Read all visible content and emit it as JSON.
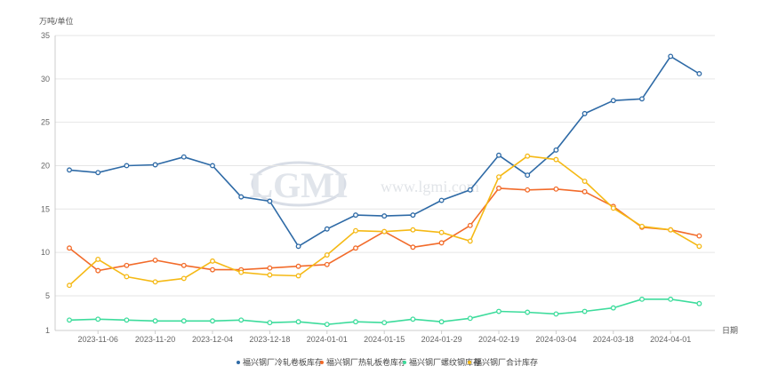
{
  "watermark": {
    "logo_text": "LGMI",
    "url_text": "www.lgmi.com"
  },
  "chart_data": {
    "type": "line",
    "title": "",
    "ylabel": "万吨/单位",
    "xlabel": "日期",
    "ylim": [
      1,
      35
    ],
    "yticks": [
      1,
      5,
      10,
      15,
      20,
      25,
      30,
      35
    ],
    "x": [
      "2023-10-30",
      "2023-11-06",
      "2023-11-13",
      "2023-11-20",
      "2023-11-27",
      "2023-12-04",
      "2023-12-11",
      "2023-12-18",
      "2023-12-25",
      "2024-01-01",
      "2024-01-08",
      "2024-01-15",
      "2024-01-22",
      "2024-01-29",
      "2024-02-05",
      "2024-02-19",
      "2024-02-26",
      "2024-03-04",
      "2024-03-11",
      "2024-03-18",
      "2024-03-25",
      "2024-04-01",
      "2024-04-08"
    ],
    "xtick_labels": [
      "2023-11-06",
      "2023-11-20",
      "2023-12-04",
      "2023-12-18",
      "2024-01-01",
      "2024-01-15",
      "2024-01-29",
      "2024-02-19",
      "2024-03-04",
      "2024-03-18",
      "2024-04-01"
    ],
    "grid": "horizontal",
    "legend_position": "bottom",
    "series": [
      {
        "name": "福兴钢厂冷轧卷板库存",
        "color": "#2e6aa6",
        "values": [
          19.5,
          19.2,
          20.0,
          20.1,
          21.0,
          20.0,
          16.4,
          15.9,
          10.7,
          12.7,
          14.3,
          14.2,
          14.3,
          16.0,
          17.2,
          21.2,
          18.9,
          21.8,
          26.0,
          27.5,
          27.7,
          32.6,
          30.6
        ]
      },
      {
        "name": "福兴钢厂热轧板卷库存",
        "color": "#f26b2a",
        "values": [
          10.5,
          7.9,
          8.5,
          9.1,
          8.5,
          8.0,
          8.0,
          8.2,
          8.4,
          8.6,
          10.5,
          12.4,
          10.6,
          11.1,
          13.1,
          17.4,
          17.2,
          17.3,
          17.0,
          15.3,
          12.9,
          12.6,
          11.9
        ]
      },
      {
        "name": "福兴钢厂螺纹钢库存",
        "color": "#3ddc9c",
        "values": [
          2.2,
          2.3,
          2.2,
          2.1,
          2.1,
          2.1,
          2.2,
          1.9,
          2.0,
          1.7,
          2.0,
          1.9,
          2.3,
          2.0,
          2.4,
          3.2,
          3.1,
          2.9,
          3.2,
          3.6,
          4.6,
          4.6,
          4.1
        ]
      },
      {
        "name": "福兴钢厂合计库存",
        "color": "#f5b915",
        "values": [
          6.2,
          9.2,
          7.2,
          6.6,
          7.0,
          9.0,
          7.7,
          7.4,
          7.3,
          9.7,
          12.5,
          12.4,
          12.6,
          12.3,
          11.3,
          18.7,
          21.1,
          20.7,
          18.2,
          15.1,
          13.0,
          12.6,
          10.7
        ]
      }
    ]
  }
}
